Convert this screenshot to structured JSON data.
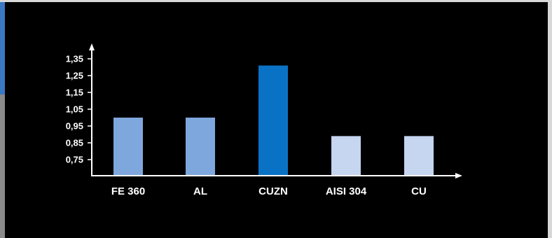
{
  "chart_data": {
    "type": "bar",
    "title": "",
    "xlabel": "",
    "ylabel": "",
    "categories": [
      "FE 360",
      "AL",
      "CUZN",
      "AISI 304",
      "CU"
    ],
    "values": [
      1.0,
      1.0,
      1.31,
      0.89,
      0.89
    ],
    "bar_colors": [
      "#7ea7dd",
      "#7ea7dd",
      "#0a72c4",
      "#c6d5f0",
      "#c6d5f0"
    ],
    "y_ticks": [
      "1,35",
      "1,25",
      "1,15",
      "1,05",
      "0,95",
      "0,85",
      "0,75"
    ],
    "y_tick_values": [
      1.35,
      1.25,
      1.15,
      1.05,
      0.95,
      0.85,
      0.75
    ],
    "ylim": [
      0.66,
      1.44
    ],
    "grid": false,
    "background": "#000000",
    "axis_color": "#ffffff"
  }
}
